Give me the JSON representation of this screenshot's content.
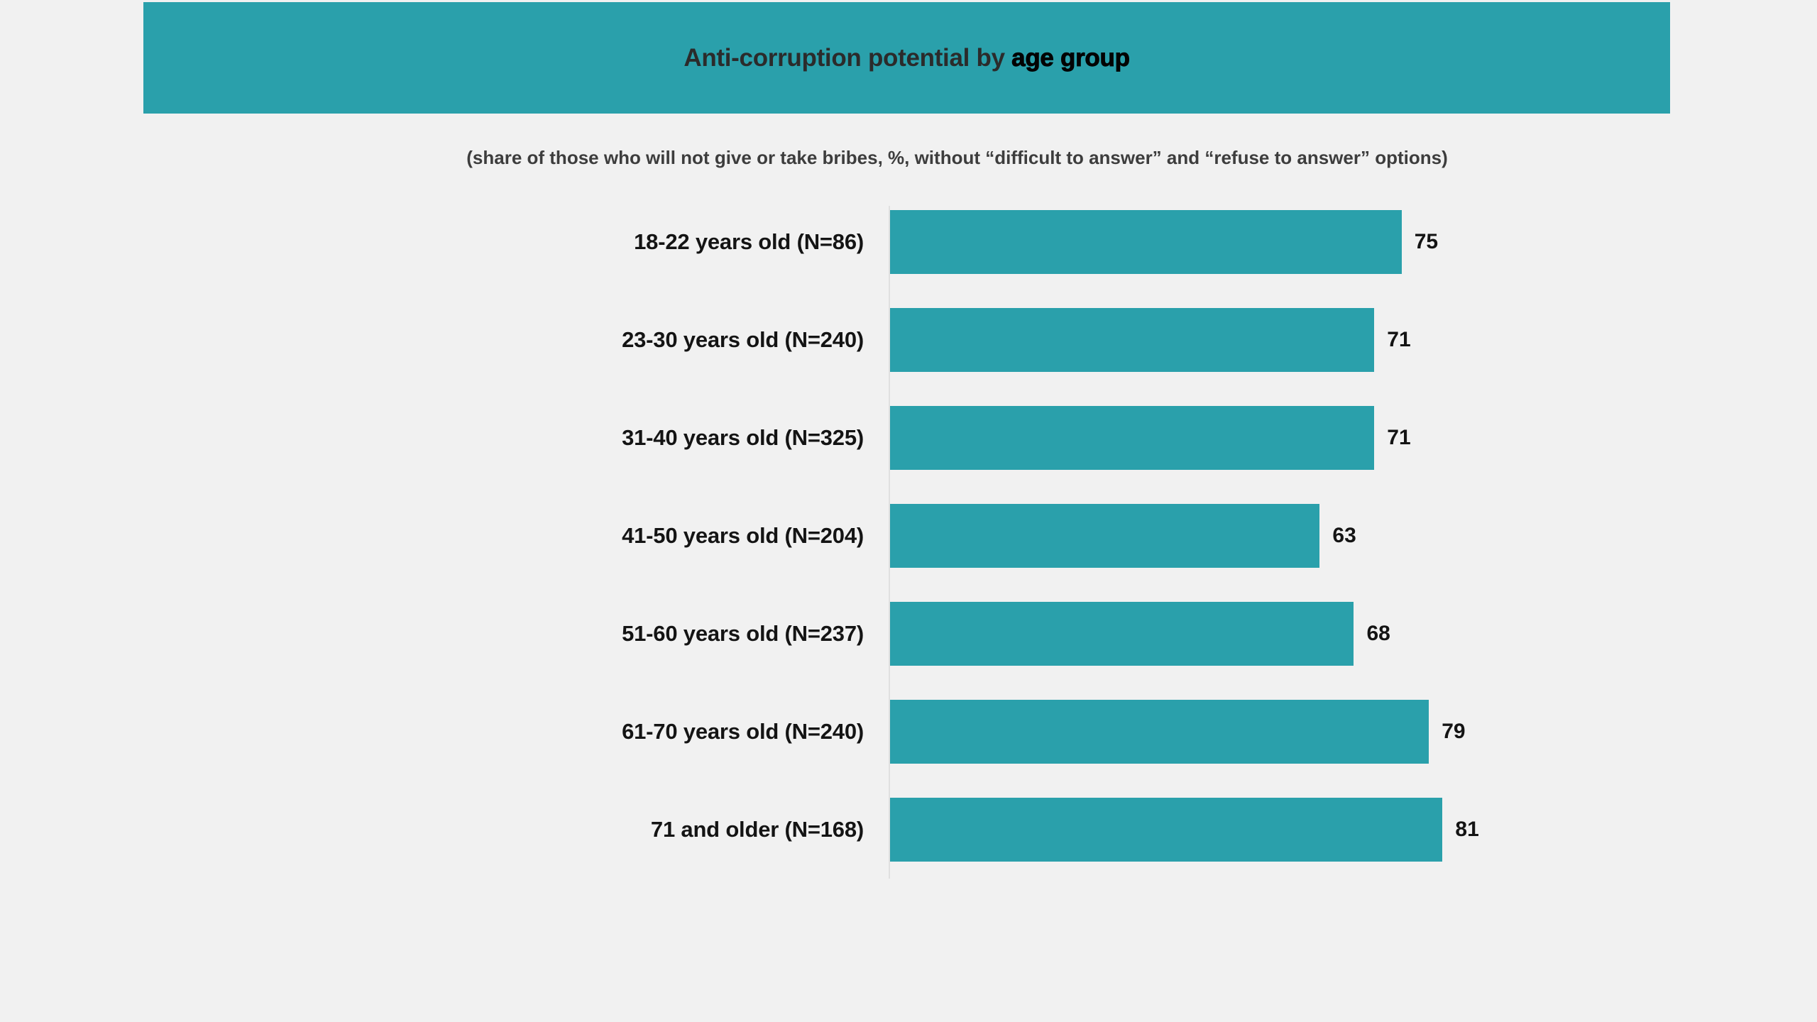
{
  "colors": {
    "accent_teal": "#2AA0AB",
    "background": "#f1f1f1",
    "title_text": "#2b2b2b",
    "title_emphasis_text": "#030303",
    "subtitle_text": "#3d3d3d",
    "label_text": "#141414",
    "axis_line": "#e0e0e0"
  },
  "header": {
    "title_prefix": "Anti-corruption potential by ",
    "title_emphasis": "age group"
  },
  "subtitle": "(share of those who will not give or take bribes, %, without “difficult to answer” and “refuse to answer” options)",
  "chart_data": {
    "type": "bar",
    "orientation": "horizontal",
    "title": "Anti-corruption potential by age group",
    "subtitle": "(share of those who will not give or take bribes, %, without “difficult to answer” and “refuse to answer” options)",
    "categories": [
      "18-22 years old (N=86)",
      "23-30 years old (N=240)",
      "31-40 years old (N=325)",
      "41-50 years old (N=204)",
      "51-60 years old (N=237)",
      "61-70 years old (N=240)",
      "71 and older (N=168)"
    ],
    "values": [
      75,
      71,
      71,
      63,
      68,
      79,
      81
    ],
    "xlim": [
      0,
      100
    ],
    "xlabel": "",
    "ylabel": "",
    "grid": false,
    "legend": false,
    "bar_color": "#2AA0AB",
    "value_label_position": "outside-end"
  }
}
